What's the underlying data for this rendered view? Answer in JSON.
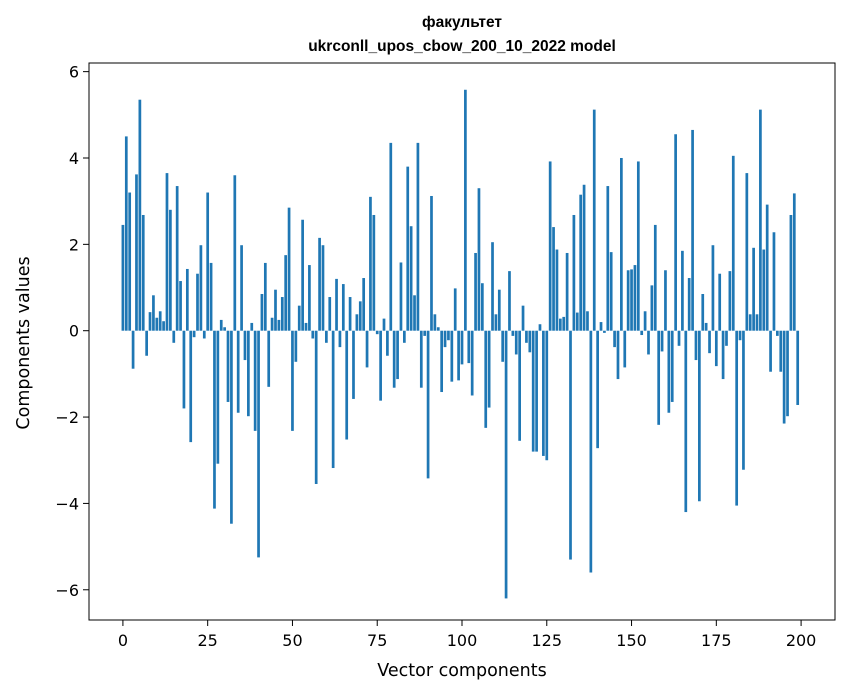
{
  "chart_data": {
    "type": "bar",
    "title_line1": "факультет",
    "title_line2": "ukrconll_upos_cbow_200_10_2022 model",
    "xlabel": "Vector components",
    "ylabel": "Components values",
    "xlim": [
      -10,
      210
    ],
    "ylim": [
      -6.7,
      6.2
    ],
    "xticks": [
      0,
      25,
      50,
      75,
      100,
      125,
      150,
      175,
      200
    ],
    "yticks": [
      -6,
      -4,
      -2,
      0,
      2,
      4,
      6
    ],
    "ytick_labels": [
      "−6",
      "−4",
      "−2",
      "0",
      "2",
      "4",
      "6"
    ],
    "bar_color": "#1f77b4",
    "grid": false,
    "values": [
      2.45,
      4.5,
      3.2,
      -0.88,
      3.62,
      5.35,
      2.68,
      -0.58,
      0.43,
      0.82,
      0.3,
      0.45,
      0.22,
      3.65,
      2.8,
      -0.28,
      3.35,
      1.15,
      -1.8,
      1.43,
      -2.58,
      -0.15,
      1.32,
      1.98,
      -0.18,
      3.2,
      1.57,
      -4.12,
      -3.08,
      0.25,
      0.08,
      -1.65,
      -4.47,
      3.6,
      -1.9,
      1.98,
      -0.68,
      -1.98,
      0.18,
      -2.32,
      -5.25,
      0.85,
      1.57,
      -1.3,
      0.3,
      0.95,
      0.25,
      0.78,
      1.75,
      2.85,
      -2.32,
      -0.72,
      0.58,
      2.57,
      0.18,
      1.52,
      -0.18,
      -3.55,
      2.15,
      1.98,
      -0.28,
      0.78,
      -3.18,
      1.2,
      -0.38,
      1.08,
      -2.52,
      0.78,
      -1.58,
      0.38,
      0.68,
      1.22,
      -0.85,
      3.1,
      2.68,
      -0.08,
      -1.62,
      0.28,
      -0.58,
      4.35,
      -1.32,
      -1.12,
      1.58,
      -0.28,
      3.8,
      2.42,
      0.82,
      4.35,
      -1.32,
      -0.12,
      -3.42,
      3.12,
      0.38,
      0.08,
      -1.42,
      -0.38,
      -0.22,
      -1.18,
      0.98,
      -1.15,
      -0.78,
      5.58,
      -0.75,
      -1.5,
      1.8,
      3.3,
      1.1,
      -2.25,
      -1.78,
      2.05,
      0.38,
      0.95,
      -0.72,
      -6.2,
      1.38,
      -0.12,
      -0.55,
      -2.55,
      0.58,
      -0.28,
      -0.5,
      -2.8,
      -2.8,
      0.15,
      -2.9,
      -3.0,
      3.92,
      2.4,
      1.88,
      0.28,
      0.32,
      1.8,
      -5.3,
      2.68,
      0.42,
      3.15,
      3.38,
      0.45,
      -5.6,
      5.12,
      -2.72,
      0.2,
      -0.05,
      3.35,
      1.82,
      -0.38,
      -1.12,
      4.0,
      -0.85,
      1.4,
      1.42,
      1.52,
      3.92,
      -0.1,
      0.45,
      -0.55,
      1.05,
      2.45,
      -2.18,
      -0.48,
      1.4,
      -1.9,
      -1.65,
      4.55,
      -0.35,
      1.85,
      -4.2,
      1.22,
      4.65,
      -0.68,
      -3.95,
      0.85,
      0.18,
      -0.52,
      1.98,
      -0.82,
      1.32,
      -1.12,
      -0.35,
      1.38,
      4.05,
      -4.05,
      -0.22,
      -3.22,
      3.65,
      0.38,
      1.92,
      0.38,
      5.12,
      1.88,
      2.92,
      -0.95,
      2.28,
      -0.12,
      -0.95,
      -2.15,
      -1.98,
      2.68,
      3.18,
      -1.72
    ]
  }
}
